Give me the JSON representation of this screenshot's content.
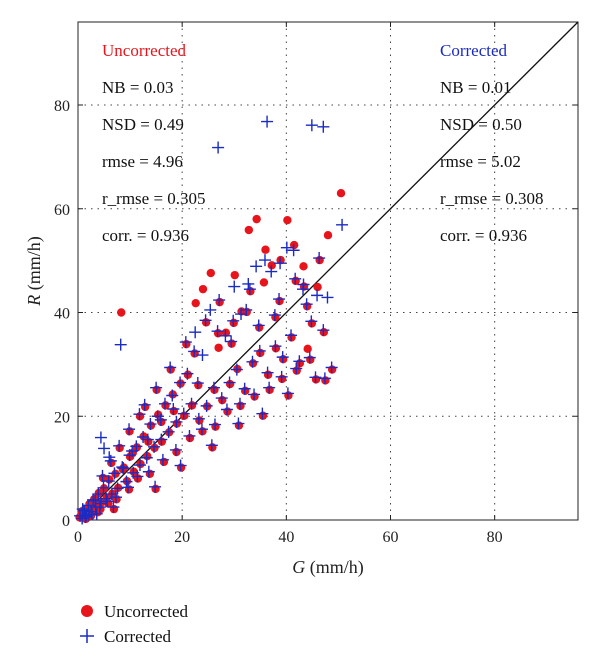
{
  "chart_data": {
    "type": "scatter",
    "xlabel_var": "G",
    "xlabel_unit": " (mm/h)",
    "ylabel_var": "R",
    "ylabel_unit": " (mm/h)",
    "xlim": [
      0,
      96
    ],
    "ylim": [
      0,
      96
    ],
    "xticks": [
      0,
      20,
      40,
      60,
      80
    ],
    "yticks": [
      0,
      20,
      40,
      60,
      80
    ],
    "grid": true,
    "one_to_one_line": true,
    "legend_position": "bottom-left",
    "series": [
      {
        "name": "Uncorrected",
        "color": "#e8141b",
        "marker": "circle",
        "points": [
          [
            0.3,
            0.5
          ],
          [
            0.6,
            1.0
          ],
          [
            1.0,
            0.4
          ],
          [
            1.3,
            2.0
          ],
          [
            1.8,
            1.0
          ],
          [
            2.2,
            3.1
          ],
          [
            2.7,
            1.9
          ],
          [
            3.1,
            4.0
          ],
          [
            3.6,
            2.6
          ],
          [
            4.0,
            5.2
          ],
          [
            4.5,
            3.4
          ],
          [
            5.0,
            6.1
          ],
          [
            5.5,
            4.3
          ],
          [
            6.0,
            7.8
          ],
          [
            6.6,
            5.1
          ],
          [
            7.2,
            8.9
          ],
          [
            7.7,
            6.2
          ],
          [
            8.3,
            40.0
          ],
          [
            8.8,
            10.1
          ],
          [
            9.4,
            7.5
          ],
          [
            10.0,
            12.2
          ],
          [
            10.7,
            9.3
          ],
          [
            11.3,
            14.0
          ],
          [
            12.0,
            10.8
          ],
          [
            12.6,
            16.1
          ],
          [
            13.3,
            12.3
          ],
          [
            14.0,
            18.2
          ],
          [
            14.7,
            13.9
          ],
          [
            15.4,
            20.3
          ],
          [
            16.1,
            15.1
          ],
          [
            16.8,
            22.1
          ],
          [
            17.5,
            16.9
          ],
          [
            18.2,
            24.2
          ],
          [
            19.0,
            18.6
          ],
          [
            19.7,
            26.3
          ],
          [
            20.4,
            20.1
          ],
          [
            21.1,
            28.0
          ],
          [
            21.9,
            22.1
          ],
          [
            22.6,
            41.8
          ],
          [
            23.3,
            19.2
          ],
          [
            24.0,
            44.5
          ],
          [
            24.8,
            21.9
          ],
          [
            25.5,
            47.6
          ],
          [
            26.2,
            25.1
          ],
          [
            27.0,
            33.2
          ],
          [
            27.7,
            23.1
          ],
          [
            28.4,
            36.1
          ],
          [
            29.2,
            26.2
          ],
          [
            29.9,
            38.0
          ],
          [
            30.6,
            29.1
          ],
          [
            31.4,
            40.2
          ],
          [
            32.1,
            24.9
          ],
          [
            32.8,
            55.9
          ],
          [
            33.6,
            30.2
          ],
          [
            34.3,
            58.0
          ],
          [
            35.0,
            32.2
          ],
          [
            35.7,
            45.8
          ],
          [
            36.5,
            28.0
          ],
          [
            37.2,
            49.1
          ],
          [
            38.0,
            33.1
          ],
          [
            38.7,
            42.2
          ],
          [
            39.4,
            31.0
          ],
          [
            40.2,
            57.8
          ],
          [
            41.0,
            35.2
          ],
          [
            41.8,
            46.1
          ],
          [
            42.6,
            30.2
          ],
          [
            43.3,
            48.9
          ],
          [
            44.1,
            33.0
          ],
          [
            44.9,
            37.9
          ],
          [
            45.7,
            27.1
          ],
          [
            46.4,
            50.1
          ],
          [
            47.2,
            36.2
          ],
          [
            48.0,
            54.9
          ],
          [
            48.8,
            29.0
          ],
          [
            50.5,
            63.0
          ],
          [
            2.5,
            0.8
          ],
          [
            3.8,
            1.5
          ],
          [
            5.8,
            3.2
          ],
          [
            7.4,
            4.0
          ],
          [
            9.8,
            5.9
          ],
          [
            11.5,
            8.0
          ],
          [
            13.8,
            8.9
          ],
          [
            16.5,
            11.2
          ],
          [
            18.9,
            13.1
          ],
          [
            21.5,
            15.8
          ],
          [
            23.9,
            17.1
          ],
          [
            26.4,
            18.0
          ],
          [
            28.7,
            20.9
          ],
          [
            31.2,
            22.0
          ],
          [
            33.9,
            23.8
          ],
          [
            36.8,
            25.1
          ],
          [
            39.2,
            27.2
          ],
          [
            42.0,
            28.8
          ],
          [
            44.6,
            30.9
          ],
          [
            47.5,
            26.9
          ],
          [
            12.9,
            21.8
          ],
          [
            15.1,
            25.1
          ],
          [
            17.8,
            29.0
          ],
          [
            20.8,
            33.9
          ],
          [
            24.6,
            38.1
          ],
          [
            27.2,
            42.0
          ],
          [
            30.1,
            47.2
          ],
          [
            33.1,
            44.1
          ],
          [
            36.0,
            52.1
          ],
          [
            38.9,
            50.1
          ],
          [
            41.5,
            53.0
          ],
          [
            44.0,
            41.2
          ],
          [
            46.0,
            44.9
          ],
          [
            4.8,
            8.1
          ],
          [
            6.4,
            11.0
          ],
          [
            8.0,
            13.9
          ],
          [
            9.9,
            17.1
          ],
          [
            11.9,
            20.0
          ],
          [
            6.9,
            2.1
          ],
          [
            14.9,
            6.0
          ],
          [
            19.8,
            10.1
          ],
          [
            25.8,
            14.0
          ],
          [
            30.9,
            18.2
          ],
          [
            35.5,
            20.1
          ],
          [
            40.4,
            24.0
          ],
          [
            22.4,
            32.1
          ],
          [
            26.9,
            36.0
          ],
          [
            32.4,
            40.1
          ],
          [
            37.9,
            39.1
          ],
          [
            43.4,
            45.0
          ],
          [
            29.5,
            34.0
          ],
          [
            34.8,
            37.1
          ],
          [
            18.4,
            21.0
          ],
          [
            23.1,
            26.0
          ],
          [
            16.0,
            18.9
          ],
          [
            13.5,
            15.1
          ],
          [
            10.5,
            12.9
          ],
          [
            8.6,
            9.8
          ],
          [
            1.5,
            0.2
          ],
          [
            0.8,
            1.7
          ],
          [
            2.0,
            1.4
          ],
          [
            3.4,
            3.3
          ],
          [
            4.3,
            2.1
          ]
        ]
      },
      {
        "name": "Corrected",
        "color": "#1a2bc4",
        "marker": "plus",
        "points": [
          [
            0.4,
            0.8
          ],
          [
            0.8,
            0.3
          ],
          [
            1.2,
            1.8
          ],
          [
            1.6,
            0.9
          ],
          [
            2.0,
            2.8
          ],
          [
            2.5,
            1.6
          ],
          [
            2.9,
            3.9
          ],
          [
            3.4,
            2.5
          ],
          [
            3.9,
            5.0
          ],
          [
            4.4,
            3.2
          ],
          [
            4.9,
            6.2
          ],
          [
            5.4,
            4.1
          ],
          [
            5.9,
            7.5
          ],
          [
            6.5,
            5.0
          ],
          [
            7.0,
            9.0
          ],
          [
            7.6,
            6.1
          ],
          [
            8.2,
            33.8
          ],
          [
            8.7,
            10.0
          ],
          [
            9.3,
            7.4
          ],
          [
            9.9,
            12.5
          ],
          [
            10.6,
            9.1
          ],
          [
            11.2,
            14.2
          ],
          [
            11.9,
            10.6
          ],
          [
            12.5,
            16.0
          ],
          [
            13.2,
            12.0
          ],
          [
            13.9,
            18.5
          ],
          [
            14.6,
            14.1
          ],
          [
            15.3,
            20.0
          ],
          [
            16.0,
            15.5
          ],
          [
            16.7,
            22.4
          ],
          [
            17.4,
            17.0
          ],
          [
            18.1,
            24.0
          ],
          [
            18.9,
            18.9
          ],
          [
            19.6,
            26.5
          ],
          [
            20.3,
            20.5
          ],
          [
            21.0,
            28.2
          ],
          [
            21.8,
            22.4
          ],
          [
            22.5,
            36.2
          ],
          [
            23.2,
            19.5
          ],
          [
            23.9,
            31.8
          ],
          [
            24.7,
            22.0
          ],
          [
            25.4,
            40.5
          ],
          [
            26.1,
            25.5
          ],
          [
            26.9,
            71.8
          ],
          [
            27.6,
            23.5
          ],
          [
            28.3,
            35.5
          ],
          [
            29.1,
            26.5
          ],
          [
            29.8,
            38.4
          ],
          [
            30.5,
            29.0
          ],
          [
            31.3,
            39.7
          ],
          [
            32.0,
            25.3
          ],
          [
            32.7,
            45.5
          ],
          [
            33.5,
            30.5
          ],
          [
            34.2,
            48.9
          ],
          [
            34.9,
            32.6
          ],
          [
            36.3,
            76.8
          ],
          [
            36.4,
            28.4
          ],
          [
            37.1,
            47.9
          ],
          [
            37.9,
            33.5
          ],
          [
            38.6,
            42.6
          ],
          [
            39.3,
            31.4
          ],
          [
            40.1,
            52.5
          ],
          [
            40.9,
            35.6
          ],
          [
            41.7,
            46.5
          ],
          [
            42.5,
            30.6
          ],
          [
            43.2,
            44.5
          ],
          [
            44.9,
            76.1
          ],
          [
            44.8,
            38.3
          ],
          [
            45.6,
            27.5
          ],
          [
            46.3,
            50.5
          ],
          [
            47.1,
            36.6
          ],
          [
            47.1,
            75.8
          ],
          [
            47.9,
            42.9
          ],
          [
            48.7,
            29.4
          ],
          [
            50.7,
            56.9
          ],
          [
            2.7,
            1.1
          ],
          [
            3.6,
            1.2
          ],
          [
            5.6,
            3.6
          ],
          [
            7.3,
            4.4
          ],
          [
            9.6,
            6.3
          ],
          [
            11.4,
            8.4
          ],
          [
            13.6,
            9.3
          ],
          [
            16.3,
            11.6
          ],
          [
            18.8,
            13.5
          ],
          [
            21.4,
            16.2
          ],
          [
            23.8,
            17.5
          ],
          [
            26.3,
            18.4
          ],
          [
            28.6,
            21.3
          ],
          [
            31.1,
            22.4
          ],
          [
            33.8,
            24.2
          ],
          [
            36.7,
            25.5
          ],
          [
            39.1,
            27.6
          ],
          [
            41.9,
            29.2
          ],
          [
            44.5,
            31.3
          ],
          [
            47.4,
            27.3
          ],
          [
            12.8,
            22.2
          ],
          [
            15.0,
            25.5
          ],
          [
            17.7,
            29.4
          ],
          [
            20.7,
            34.3
          ],
          [
            24.5,
            38.5
          ],
          [
            27.1,
            42.4
          ],
          [
            30.0,
            45.0
          ],
          [
            33.0,
            44.5
          ],
          [
            35.9,
            50.1
          ],
          [
            38.8,
            49.5
          ],
          [
            41.4,
            52.0
          ],
          [
            43.9,
            41.6
          ],
          [
            45.9,
            43.3
          ],
          [
            4.7,
            8.5
          ],
          [
            6.3,
            11.4
          ],
          [
            7.9,
            14.3
          ],
          [
            9.8,
            17.5
          ],
          [
            11.8,
            20.4
          ],
          [
            6.8,
            2.5
          ],
          [
            14.8,
            6.4
          ],
          [
            19.7,
            10.5
          ],
          [
            25.7,
            14.4
          ],
          [
            30.8,
            18.6
          ],
          [
            35.4,
            20.5
          ],
          [
            40.3,
            24.4
          ],
          [
            22.3,
            32.5
          ],
          [
            26.8,
            36.4
          ],
          [
            32.3,
            40.5
          ],
          [
            37.8,
            39.5
          ],
          [
            43.3,
            45.4
          ],
          [
            29.4,
            34.4
          ],
          [
            34.7,
            37.5
          ],
          [
            18.3,
            21.4
          ],
          [
            23.0,
            26.4
          ],
          [
            15.9,
            19.3
          ],
          [
            13.4,
            15.5
          ],
          [
            10.4,
            13.3
          ],
          [
            8.5,
            10.2
          ],
          [
            1.4,
            0.6
          ],
          [
            0.9,
            2.1
          ],
          [
            2.1,
            1.0
          ],
          [
            3.3,
            3.7
          ],
          [
            4.2,
            2.5
          ],
          [
            5.0,
            13.8
          ],
          [
            4.4,
            15.9
          ],
          [
            6.0,
            12.1
          ]
        ]
      }
    ],
    "annotations": {
      "left": {
        "title": "Uncorrected",
        "lines": [
          "NB = 0.03",
          "NSD = 0.49",
          "rmse = 4.96",
          "r_rmse = 0.305",
          "corr. = 0.936"
        ]
      },
      "right": {
        "title": "Corrected",
        "lines": [
          "NB = 0.01",
          "NSD = 0.50",
          "rmse = 5.02",
          "r_rmse = 0.308",
          "corr. = 0.936"
        ]
      }
    }
  }
}
